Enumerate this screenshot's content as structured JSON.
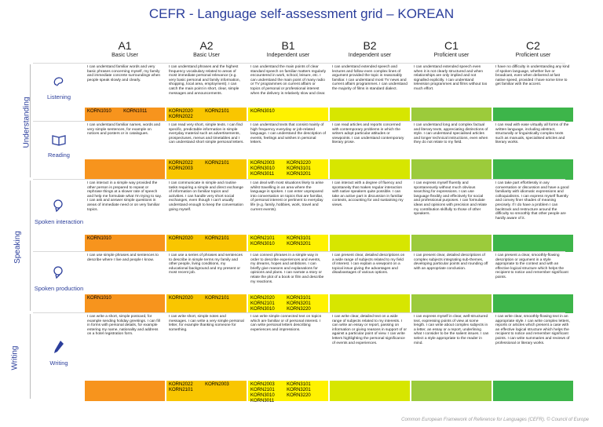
{
  "title": "CEFR - Language self-assessment grid – KOREAN",
  "levels": [
    {
      "code": "A1",
      "label": "Basic User"
    },
    {
      "code": "A2",
      "label": "Basic User"
    },
    {
      "code": "B1",
      "label": "Independent user"
    },
    {
      "code": "B2",
      "label": "Independent user"
    },
    {
      "code": "C1",
      "label": "Proficient user"
    },
    {
      "code": "C2",
      "label": "Proficient user"
    }
  ],
  "sections": [
    {
      "label": "Understanding"
    },
    {
      "label": "Speaking"
    },
    {
      "label": "Writing"
    }
  ],
  "skills": [
    {
      "name": "Listening",
      "icon": "ear-icon",
      "descriptors": [
        "I can understand familiar words and very basic phrases concerning myself, my family and immediate concrete surroundings when people speak slowly and clearly.",
        "I can understand phrases and the highest frequency vocabulary related to areas of most immediate personal relevance (e.g. very basic personal and family information, shopping, local area, employment). I can catch the main point in short, clear, simple messages and announcements.",
        "I can understand the main points of clear standard speech on familiar matters regularly encountered in work, school, leisure, etc. I can understand the main point of many radio or TV programmes on current affairs or topics of personal or professional interest when the delivery is relatively slow and clear.",
        "I can understand extended speech and lectures and follow even complex lines of argument provided the topic is reasonably familiar. I can understand most TV news and current affairs programmes. I can understand the majority of films in standard dialect.",
        "I can understand extended speech even when it is not clearly structured and when relationships are only implied and not signalled explicitly. I can understand television programmes and films without too much effort.",
        "I have no difficulty in understanding any kind of spoken language, whether live or broadcast, even when delivered at fast native speed, provided I have some time to get familiar with the accent."
      ],
      "codes": [
        [
          "KORN1010",
          "KORN1011"
        ],
        [
          "KORN2020",
          "KORN2101",
          "KORN2022"
        ],
        [
          "KORN3010"
        ],
        [],
        [],
        []
      ]
    },
    {
      "name": "Reading",
      "icon": "book-icon",
      "descriptors": [
        "I can understand familiar names, words and very simple sentences, for example on notices and posters or in catalogues.",
        "I can read very short, simple texts. I can find specific, predictable information in simple everyday material such as advertisements, prospectuses, menus and timetables and I can understand short simple personal letters.",
        "I can understand texts that consist mainly of high frequency everyday or job-related language. I can understand the description of events, feelings and wishes in personal letters.",
        "I can read articles and reports concerned with contemporary problems in which the writers adopt particular attitudes or viewpoints. I can understand contemporary literary prose.",
        "I can understand long and complex factual and literary texts, appreciating distinctions of style. I can understand specialised articles and longer technical instructions, even when they do not relate to my field.",
        "I can read with ease virtually all forms of the written language, including abstract, structurally or linguistically complex texts such as manuals, specialised articles and literary works."
      ],
      "codes": [
        [],
        [
          "KORN2022",
          "KORN2101",
          "KORN2003"
        ],
        [
          "KORN2003",
          "KORN3220",
          "KORN3010",
          "KORN3101",
          "KORN3011",
          "KORN3201"
        ],
        [],
        [],
        []
      ]
    },
    {
      "name": "Spoken interaction",
      "icon": "speech-head-icon",
      "descriptors": [
        "I can interact in a simple way provided the other person is prepared to repeat or rephrase things at a slower rate of speech and help me formulate what I'm trying to say. I can ask and answer simple questions in areas of immediate need or on very familiar topics.",
        "I can communicate in simple and routine tasks requiring a simple and direct exchange of information on familiar topics and activities. I can handle very short social exchanges, even though I can't usually understand enough to keep the conversation going myself.",
        "I can deal with most situations likely to arise whilst travelling in an area where the language is spoken. I can enter unprepared into conversation on topics that are familiar, of personal interest or pertinent to everyday life (e.g. family, hobbies, work, travel and current events).",
        "I can interact with a degree of fluency and spontaneity that makes regular interaction with native speakers quite possible. I can take an active part in discussion in familiar contexts, accounting for and sustaining my views.",
        "I can express myself fluently and spontaneously without much obvious searching for expressions. I can use language flexibly and effectively for social and professional purposes. I can formulate ideas and opinions with precision and relate my contribution skilfully to those of other speakers.",
        "I can take part effortlessly in any conversation or discussion and have a good familiarity with idiomatic expressions and colloquialisms. I can express myself fluently and convey finer shades of meaning precisely. If I do have a problem I can backtrack and restructure around the difficulty so smoothly that other people are hardly aware of it."
      ],
      "codes": [
        [
          "KORN1010"
        ],
        [
          "KORN2020",
          "KORN2101"
        ],
        [
          "KORN2101",
          "KORN3101",
          "KORN3010",
          "KORN3201"
        ],
        [],
        [],
        []
      ]
    },
    {
      "name": "Spoken production",
      "icon": "speech-head-icon",
      "descriptors": [
        "I can use simple phrases and sentences to describe where I live and people I know.",
        "I can use a series of phrases and sentences to describe in simple terms my family and other people, living conditions, my educational background and my present or most recent job.",
        "I can connect phrases in a simple way in order to describe experiences and events, my dreams, hopes and ambitions. I can briefly give reasons and explanations for opinions and plans. I can narrate a story or relate the plot of a book or film and describe my reactions.",
        "I can present clear, detailed descriptions on a wide range of subjects related to my field of interest. I can explain a viewpoint on a topical issue giving the advantages and disadvantages of various options.",
        "I can present clear, detailed descriptions of complex subjects integrating sub-themes, developing particular points and rounding off with an appropriate conclusion.",
        "I can present a clear, smoothly-flowing description or argument in a style appropriate to the context and with an effective logical structure which helps the recipient to notice and remember significant points."
      ],
      "codes": [
        [
          "KORN1010"
        ],
        [
          "KORN2020",
          "KORN2101"
        ],
        [
          "KORN2020",
          "KORN3101",
          "KORN2101",
          "KORN3201",
          "KORN3010",
          "KORN3220"
        ],
        [],
        [],
        []
      ]
    },
    {
      "name": "Writing",
      "icon": "pen-icon",
      "descriptors": [
        "I can write a short, simple postcard, for example sending holiday greetings. I can fill in forms with personal details, for example entering my name, nationality and address on a hotel registration form.",
        "I can write short, simple notes and messages. I can write a very simple personal letter, for example thanking someone for something.",
        "I can write simple connected text on topics which are familiar or of personal interest. I can write personal letters describing experiences and impressions.",
        "I can write clear, detailed text on a wide range of subjects related to my interests. I can write an essay or report, passing on information or giving reasons in support of or against a particular point of view. I can write letters highlighting the personal significance of events and experiences.",
        "I can express myself in clear, well-structured text, expressing points of view at some length. I can write about complex subjects in a letter, an essay or a report, underlining what I consider to be the salient issues. I can select a style appropriate to the reader in mind.",
        "I can write clear, smoothly-flowing text in an appropriate style. I can write complex letters, reports or articles which present a case with an effective logical structure which helps the recipient to notice and remember significant points. I can write summaries and reviews of professional or literary works."
      ],
      "codes": [
        [],
        [
          "KORN2022",
          "KORN2003",
          "KORN2101"
        ],
        [
          "KORN2003",
          "KORN3101",
          "KORN2101",
          "KORN3201",
          "KORN3010",
          "KORN3220",
          "KORN3011"
        ],
        [],
        [],
        []
      ]
    }
  ],
  "colors": {
    "A1": "#f7941d",
    "A2": "#f9c600",
    "B1": "#fff200",
    "B2": "#d7e600",
    "C1": "#9ccb3b",
    "C2": "#3db54a",
    "title": "#2b3e9b"
  },
  "footer": "Common European Framework of Reference for Languages (CEFR). © Council of Europe"
}
